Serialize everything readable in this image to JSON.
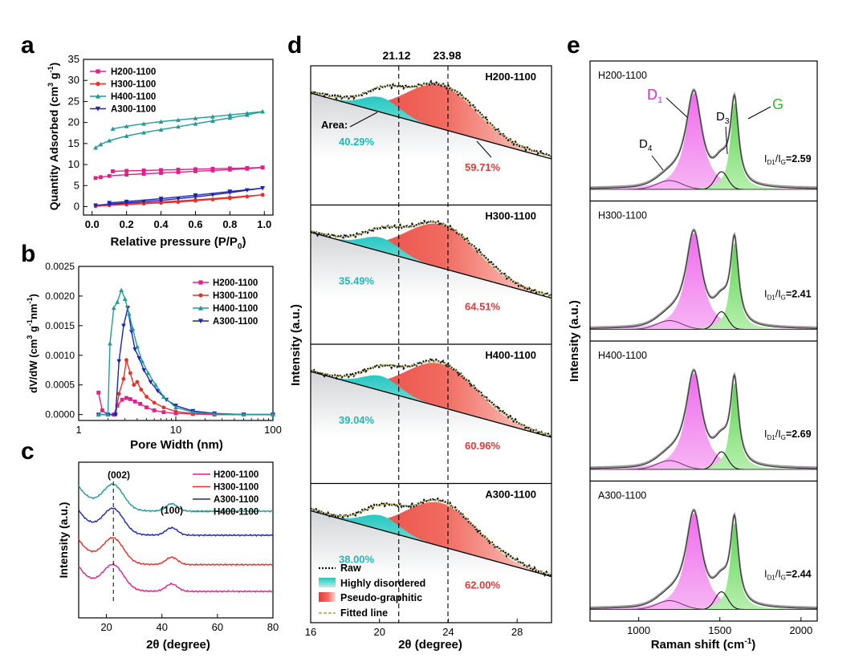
{
  "chart_data": [
    {
      "panel": "a",
      "type": "line",
      "xlabel": "Relative pressure (P/P0)",
      "ylabel": "Quantity Adsorbed (cm3 g-1)",
      "xlim": [
        -0.05,
        1.05
      ],
      "ylim": [
        -2,
        35
      ],
      "xticks": [
        0.0,
        0.2,
        0.4,
        0.6,
        0.8,
        1.0
      ],
      "yticks": [
        0,
        5,
        10,
        15,
        20,
        25,
        30,
        35
      ],
      "legend_position": "top-left",
      "series": [
        {
          "name": "H200-1100",
          "color": "#e0218a",
          "marker": "square",
          "adsorption": [
            [
              0.02,
              6.8
            ],
            [
              0.05,
              7.0
            ],
            [
              0.1,
              7.3
            ],
            [
              0.2,
              7.6
            ],
            [
              0.3,
              7.8
            ],
            [
              0.4,
              8.0
            ],
            [
              0.5,
              8.2
            ],
            [
              0.6,
              8.4
            ],
            [
              0.7,
              8.6
            ],
            [
              0.8,
              8.8
            ],
            [
              0.9,
              9.0
            ],
            [
              0.99,
              9.3
            ]
          ],
          "desorption": [
            [
              0.99,
              9.3
            ],
            [
              0.9,
              9.2
            ],
            [
              0.8,
              9.1
            ],
            [
              0.7,
              9.0
            ],
            [
              0.6,
              8.9
            ],
            [
              0.5,
              8.8
            ],
            [
              0.4,
              8.7
            ],
            [
              0.3,
              8.6
            ],
            [
              0.2,
              8.5
            ],
            [
              0.12,
              8.4
            ]
          ]
        },
        {
          "name": "H300-1100",
          "color": "#e8302a",
          "marker": "circle",
          "adsorption": [
            [
              0.02,
              0.1
            ],
            [
              0.1,
              0.3
            ],
            [
              0.2,
              0.5
            ],
            [
              0.3,
              0.7
            ],
            [
              0.4,
              0.9
            ],
            [
              0.5,
              1.1
            ],
            [
              0.6,
              1.4
            ],
            [
              0.7,
              1.7
            ],
            [
              0.8,
              2.0
            ],
            [
              0.9,
              2.4
            ],
            [
              0.99,
              2.8
            ]
          ],
          "desorption": [
            [
              0.99,
              2.8
            ],
            [
              0.8,
              2.2
            ],
            [
              0.6,
              1.6
            ],
            [
              0.4,
              1.1
            ],
            [
              0.2,
              0.7
            ],
            [
              0.1,
              0.5
            ]
          ]
        },
        {
          "name": "H400-1100",
          "color": "#1f9c95",
          "marker": "triangle-up",
          "adsorption": [
            [
              0.02,
              14.0
            ],
            [
              0.05,
              14.8
            ],
            [
              0.1,
              15.7
            ],
            [
              0.2,
              16.8
            ],
            [
              0.3,
              17.6
            ],
            [
              0.4,
              18.3
            ],
            [
              0.5,
              19.0
            ],
            [
              0.6,
              19.7
            ],
            [
              0.7,
              20.4
            ],
            [
              0.8,
              21.1
            ],
            [
              0.9,
              21.8
            ],
            [
              0.99,
              22.6
            ]
          ],
          "desorption": [
            [
              0.99,
              22.6
            ],
            [
              0.9,
              22.2
            ],
            [
              0.8,
              21.8
            ],
            [
              0.7,
              21.4
            ],
            [
              0.6,
              21.0
            ],
            [
              0.5,
              20.6
            ],
            [
              0.4,
              20.2
            ],
            [
              0.3,
              19.7
            ],
            [
              0.2,
              19.1
            ],
            [
              0.12,
              18.5
            ]
          ]
        },
        {
          "name": "A300-1100",
          "color": "#1a24b5",
          "marker": "triangle-down",
          "adsorption": [
            [
              0.02,
              0.3
            ],
            [
              0.1,
              0.6
            ],
            [
              0.2,
              0.9
            ],
            [
              0.3,
              1.2
            ],
            [
              0.4,
              1.5
            ],
            [
              0.5,
              1.9
            ],
            [
              0.6,
              2.3
            ],
            [
              0.7,
              2.8
            ],
            [
              0.8,
              3.3
            ],
            [
              0.9,
              3.9
            ],
            [
              0.99,
              4.4
            ]
          ],
          "desorption": [
            [
              0.99,
              4.4
            ],
            [
              0.8,
              3.6
            ],
            [
              0.6,
              2.7
            ],
            [
              0.4,
              1.9
            ],
            [
              0.2,
              1.2
            ],
            [
              0.1,
              0.9
            ]
          ]
        }
      ]
    },
    {
      "panel": "b",
      "type": "line",
      "xlabel": "Pore Width (nm)",
      "ylabel": "dV/dW (cm3 g-1nm-1)",
      "xscale": "log",
      "xlim": [
        1,
        100
      ],
      "ylim": [
        -0.0001,
        0.0025
      ],
      "xticks": [
        1,
        10,
        100
      ],
      "xtick_labels": [
        "1",
        "10",
        "100"
      ],
      "yticks": [
        0.0,
        0.0005,
        0.001,
        0.0015,
        0.002,
        0.0025
      ],
      "ytick_labels": [
        "0.0000",
        "0.0005",
        "0.0010",
        "0.0015",
        "0.0020",
        "0.0025"
      ],
      "legend_position": "top-right",
      "series": [
        {
          "name": "H200-1100",
          "color": "#e0218a",
          "marker": "square",
          "points": [
            [
              1.6,
              0.00037
            ],
            [
              1.75,
              7e-05
            ],
            [
              2.0,
              0.0
            ],
            [
              2.3,
              0.0
            ],
            [
              2.5,
              0.00015
            ],
            [
              2.8,
              0.00025
            ],
            [
              3.1,
              0.00028
            ],
            [
              3.4,
              0.00026
            ],
            [
              3.8,
              0.00022
            ],
            [
              4.3,
              0.00018
            ],
            [
              5.0,
              0.00012
            ],
            [
              6,
              7e-05
            ],
            [
              7.5,
              4e-05
            ],
            [
              10,
              2e-05
            ],
            [
              15,
              1e-05
            ],
            [
              25,
              0.0
            ],
            [
              50,
              0.0
            ],
            [
              100,
              0.0
            ]
          ]
        },
        {
          "name": "H300-1100",
          "color": "#e8302a",
          "marker": "circle",
          "points": [
            [
              1.6,
              0.0
            ],
            [
              2.0,
              0.0
            ],
            [
              2.4,
              0.0
            ],
            [
              2.6,
              0.00035
            ],
            [
              2.9,
              0.0006
            ],
            [
              3.1,
              0.00092
            ],
            [
              3.4,
              0.0007
            ],
            [
              3.7,
              0.0005
            ],
            [
              4.0,
              0.00055
            ],
            [
              4.4,
              0.00042
            ],
            [
              5.0,
              0.0003
            ],
            [
              6,
              0.0002
            ],
            [
              7.5,
              0.00012
            ],
            [
              10,
              5e-05
            ],
            [
              15,
              2e-05
            ],
            [
              25,
              0.0
            ],
            [
              50,
              0.0
            ],
            [
              100,
              0.0
            ]
          ]
        },
        {
          "name": "H400-1100",
          "color": "#1f9c95",
          "marker": "triangle-up",
          "points": [
            [
              1.6,
              0.0
            ],
            [
              2.0,
              0.0
            ],
            [
              2.1,
              0.0012
            ],
            [
              2.3,
              0.0018
            ],
            [
              2.5,
              0.0019
            ],
            [
              2.75,
              0.0021
            ],
            [
              3.0,
              0.00195
            ],
            [
              3.3,
              0.0017
            ],
            [
              3.6,
              0.00145
            ],
            [
              4.0,
              0.00115
            ],
            [
              4.5,
              0.0009
            ],
            [
              5.2,
              0.0007
            ],
            [
              6.2,
              0.0005
            ],
            [
              7.5,
              0.0003
            ],
            [
              10,
              0.00012
            ],
            [
              15,
              4e-05
            ],
            [
              25,
              1e-05
            ],
            [
              50,
              0.0
            ],
            [
              100,
              0.0
            ]
          ]
        },
        {
          "name": "A300-1100",
          "color": "#1a24b5",
          "marker": "triangle-down",
          "points": [
            [
              1.6,
              0.0
            ],
            [
              2.0,
              0.0
            ],
            [
              2.4,
              0.0
            ],
            [
              2.6,
              0.0009
            ],
            [
              2.9,
              0.0015
            ],
            [
              3.2,
              0.0018
            ],
            [
              3.5,
              0.0014
            ],
            [
              3.8,
              0.0011
            ],
            [
              4.2,
              0.00095
            ],
            [
              4.7,
              0.00075
            ],
            [
              5.5,
              0.00055
            ],
            [
              6.5,
              0.0004
            ],
            [
              8,
              0.00025
            ],
            [
              10,
              0.00015
            ],
            [
              15,
              6e-05
            ],
            [
              25,
              2e-05
            ],
            [
              50,
              0.0
            ],
            [
              100,
              0.0
            ]
          ]
        }
      ]
    },
    {
      "panel": "c",
      "type": "line",
      "xlabel": "2θ (degree)",
      "ylabel": "Intensity (a.u.)",
      "xlim": [
        10,
        80
      ],
      "xticks": [
        20,
        40,
        60,
        80
      ],
      "legend_position": "top-right",
      "annotations": [
        {
          "text": "(002)",
          "x": 22.5
        },
        {
          "text": "(100)",
          "x": 43.5
        }
      ],
      "series": [
        {
          "name": "H200-1100",
          "color": "#e0218a",
          "offset": 0.0
        },
        {
          "name": "H300-1100",
          "color": "#e8302a",
          "offset": 1.0
        },
        {
          "name": "A300-1100",
          "color": "#1a24b5",
          "offset": 2.1
        },
        {
          "name": "H400-1100",
          "color": "#1f9c95",
          "offset": 3.0
        }
      ]
    },
    {
      "panel": "d",
      "type": "area",
      "xlabel": "2θ (degree)",
      "ylabel": "Intensity (a.u.)",
      "xlim": [
        16,
        30
      ],
      "xticks": [
        16,
        20,
        24,
        28
      ],
      "vlines": [
        21.12,
        23.98
      ],
      "vline_labels": [
        "21.12",
        "23.98"
      ],
      "area_label": "Area:",
      "legend": [
        "Raw",
        "Highly disordered",
        "Pseudo-graphitic",
        "Fitted line"
      ],
      "legend_position": "bottom-left",
      "subpanels": [
        {
          "name": "H200-1100",
          "highly_disordered": "40.29%",
          "pseudo_graphitic": "59.71%"
        },
        {
          "name": "H300-1100",
          "highly_disordered": "35.49%",
          "pseudo_graphitic": "64.51%"
        },
        {
          "name": "H400-1100",
          "highly_disordered": "39.04%",
          "pseudo_graphitic": "60.96%"
        },
        {
          "name": "A300-1100",
          "highly_disordered": "38.00%",
          "pseudo_graphitic": "62.00%"
        }
      ]
    },
    {
      "panel": "e",
      "type": "area",
      "xlabel": "Raman shift (cm-1)",
      "ylabel": "Intensity (a.u.)",
      "xlim": [
        700,
        2100
      ],
      "xticks": [
        1000,
        1500,
        2000
      ],
      "peak_labels": {
        "D1": "D",
        "D1_sub": "1",
        "D3": "D",
        "D3_sub": "3",
        "D4": "D",
        "D4_sub": "4",
        "G": "G"
      },
      "ratio_label": "I",
      "ratio_sub": "D1",
      "ratio_mid": "/I",
      "ratio_sub2": "G",
      "subpanels": [
        {
          "name": "H200-1100",
          "ratio": "=2.59"
        },
        {
          "name": "H300-1100",
          "ratio": "=2.41"
        },
        {
          "name": "H400-1100",
          "ratio": "=2.69"
        },
        {
          "name": "A300-1100",
          "ratio": "=2.44"
        }
      ]
    }
  ],
  "panel_letters": [
    "a",
    "b",
    "c",
    "d",
    "e"
  ],
  "labels": {
    "a_xlabel_main": "Relative pressure (P/P",
    "a_xlabel_sub": "0",
    "a_xlabel_end": ")",
    "a_ylabel_main": "Quantity Adsorbed (cm",
    "a_ylabel_sup1": "3",
    "a_ylabel_mid": " g",
    "a_ylabel_sup2": "-1",
    "a_ylabel_end": ")",
    "b_ylabel_main": "dV/dW (cm",
    "b_ylabel_sup1": "3",
    "b_ylabel_mid": " g",
    "b_ylabel_sup2": "-1",
    "b_ylabel_mid2": "nm",
    "b_ylabel_sup3": "-1",
    "b_ylabel_end": ")",
    "e_xlabel_main": "Raman shift (cm",
    "e_xlabel_sup": "-1",
    "e_xlabel_end": ")"
  },
  "colors": {
    "teal_fill": "#1fc6c0",
    "red_fill": "#f0403a",
    "magenta_fill": "#f279f0",
    "green_fill": "#74dc6a",
    "teal_text": "#22b8b8",
    "red_text": "#e03a3a",
    "magenta_text": "#e028d8",
    "green_text": "#2fbf2f"
  }
}
